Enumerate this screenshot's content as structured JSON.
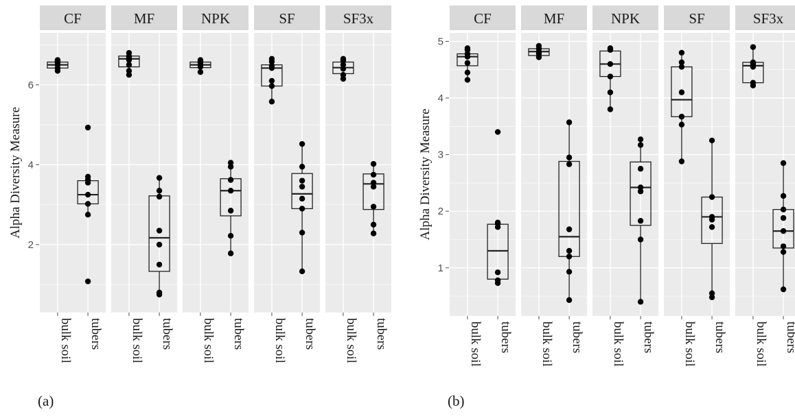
{
  "chart_data": [
    {
      "type": "boxplot",
      "label": "(a)",
      "ylabel": "Alpha Diversity Measure",
      "ylim": [
        0.3,
        7.3
      ],
      "yticks": [
        2,
        4,
        6
      ],
      "categories": [
        "bulk soil",
        "tubers"
      ],
      "facets": [
        {
          "name": "CF",
          "groups": [
            {
              "category": "bulk soil",
              "q1": 6.42,
              "median": 6.5,
              "q3": 6.57,
              "whisker_low": 6.35,
              "whisker_high": 6.62,
              "points": [
                6.35,
                6.42,
                6.5,
                6.55,
                6.6,
                6.62
              ]
            },
            {
              "category": "tubers",
              "q1": 3.02,
              "median": 3.25,
              "q3": 3.6,
              "whisker_low": 2.75,
              "whisker_high": 3.7,
              "outliers_high": [
                4.93
              ],
              "outliers_low": [
                1.08
              ],
              "points": [
                1.08,
                2.75,
                3.02,
                3.25,
                3.55,
                3.62,
                3.7,
                4.93
              ]
            }
          ]
        },
        {
          "name": "MF",
          "groups": [
            {
              "category": "bulk soil",
              "q1": 6.45,
              "median": 6.65,
              "q3": 6.72,
              "whisker_low": 6.25,
              "whisker_high": 6.8,
              "points": [
                6.25,
                6.35,
                6.5,
                6.62,
                6.68,
                6.72,
                6.8
              ]
            },
            {
              "category": "tubers",
              "q1": 1.33,
              "median": 2.17,
              "q3": 3.22,
              "whisker_low": 0.75,
              "whisker_high": 3.67,
              "points": [
                0.75,
                0.8,
                1.5,
                2.0,
                2.35,
                3.2,
                3.35,
                3.67
              ]
            }
          ]
        },
        {
          "name": "NPK",
          "groups": [
            {
              "category": "bulk soil",
              "q1": 6.43,
              "median": 6.5,
              "q3": 6.57,
              "whisker_low": 6.32,
              "whisker_high": 6.62,
              "points": [
                6.32,
                6.45,
                6.5,
                6.55,
                6.6,
                6.62
              ]
            },
            {
              "category": "tubers",
              "q1": 2.72,
              "median": 3.35,
              "q3": 3.65,
              "whisker_low": 1.78,
              "whisker_high": 4.05,
              "points": [
                1.78,
                2.22,
                2.85,
                3.35,
                3.62,
                3.95,
                4.05
              ]
            }
          ]
        },
        {
          "name": "SF",
          "groups": [
            {
              "category": "bulk soil",
              "q1": 5.97,
              "median": 6.42,
              "q3": 6.5,
              "whisker_low": 5.58,
              "whisker_high": 6.65,
              "points": [
                5.58,
                5.97,
                6.1,
                6.42,
                6.48,
                6.58,
                6.65
              ]
            },
            {
              "category": "tubers",
              "q1": 2.9,
              "median": 3.27,
              "q3": 3.78,
              "whisker_low": 1.33,
              "whisker_high": 4.52,
              "points": [
                1.33,
                2.3,
                2.9,
                3.15,
                3.45,
                3.6,
                3.95,
                4.52
              ]
            }
          ]
        },
        {
          "name": "SF3x",
          "groups": [
            {
              "category": "bulk soil",
              "q1": 6.28,
              "median": 6.43,
              "q3": 6.57,
              "whisker_low": 6.15,
              "whisker_high": 6.65,
              "points": [
                6.15,
                6.25,
                6.4,
                6.5,
                6.6,
                6.65
              ]
            },
            {
              "category": "tubers",
              "q1": 2.88,
              "median": 3.52,
              "q3": 3.77,
              "whisker_low": 2.28,
              "whisker_high": 4.02,
              "points": [
                2.28,
                2.5,
                2.95,
                3.45,
                3.55,
                3.75,
                4.02
              ]
            }
          ]
        }
      ]
    },
    {
      "type": "boxplot",
      "label": "(b)",
      "ylabel": "Alpha Diversity Measure",
      "ylim": [
        0.15,
        5.15
      ],
      "yticks": [
        1,
        2,
        3,
        4,
        5
      ],
      "categories": [
        "bulk soil",
        "tubers"
      ],
      "facets": [
        {
          "name": "CF",
          "groups": [
            {
              "category": "bulk soil",
              "q1": 4.57,
              "median": 4.73,
              "q3": 4.78,
              "whisker_low": 4.32,
              "whisker_high": 4.88,
              "points": [
                4.32,
                4.45,
                4.62,
                4.73,
                4.78,
                4.85,
                4.88
              ]
            },
            {
              "category": "tubers",
              "q1": 0.8,
              "median": 1.3,
              "q3": 1.77,
              "whisker_low": 0.73,
              "whisker_high": 1.8,
              "outliers_high": [
                3.4
              ],
              "points": [
                0.73,
                0.78,
                0.92,
                1.72,
                1.78,
                1.8,
                3.4
              ]
            }
          ]
        },
        {
          "name": "MF",
          "groups": [
            {
              "category": "bulk soil",
              "q1": 4.75,
              "median": 4.82,
              "q3": 4.87,
              "whisker_low": 4.72,
              "whisker_high": 4.92,
              "points": [
                4.72,
                4.78,
                4.82,
                4.87,
                4.92
              ]
            },
            {
              "category": "tubers",
              "q1": 1.2,
              "median": 1.55,
              "q3": 2.88,
              "whisker_low": 0.43,
              "whisker_high": 3.57,
              "points": [
                0.43,
                0.93,
                1.2,
                1.3,
                1.68,
                2.83,
                2.95,
                3.57
              ]
            }
          ]
        },
        {
          "name": "NPK",
          "groups": [
            {
              "category": "bulk soil",
              "q1": 4.38,
              "median": 4.6,
              "q3": 4.83,
              "whisker_low": 3.8,
              "whisker_high": 4.88,
              "points": [
                3.8,
                4.1,
                4.38,
                4.6,
                4.85,
                4.88
              ]
            },
            {
              "category": "tubers",
              "q1": 1.75,
              "median": 2.42,
              "q3": 2.87,
              "whisker_low": 0.4,
              "whisker_high": 3.27,
              "points": [
                0.4,
                1.5,
                1.83,
                2.35,
                2.42,
                2.75,
                3.17,
                3.27
              ]
            }
          ]
        },
        {
          "name": "SF",
          "groups": [
            {
              "category": "bulk soil",
              "q1": 3.67,
              "median": 3.97,
              "q3": 4.55,
              "whisker_low": 2.88,
              "whisker_high": 4.8,
              "points": [
                2.88,
                3.53,
                3.67,
                4.1,
                4.55,
                4.63,
                4.8
              ]
            },
            {
              "category": "tubers",
              "q1": 1.43,
              "median": 1.9,
              "q3": 2.25,
              "whisker_low": 0.48,
              "whisker_high": 3.25,
              "points": [
                0.48,
                0.55,
                1.72,
                1.85,
                1.9,
                2.25,
                3.25
              ]
            }
          ]
        },
        {
          "name": "SF3x",
          "groups": [
            {
              "category": "bulk soil",
              "q1": 4.27,
              "median": 4.57,
              "q3": 4.63,
              "whisker_low": 4.22,
              "whisker_high": 4.9,
              "points": [
                4.22,
                4.27,
                4.55,
                4.6,
                4.63,
                4.9
              ]
            },
            {
              "category": "tubers",
              "q1": 1.35,
              "median": 1.65,
              "q3": 2.03,
              "whisker_low": 0.62,
              "whisker_high": 2.85,
              "points": [
                0.62,
                1.28,
                1.38,
                1.65,
                1.88,
                2.03,
                2.27,
                2.85
              ]
            }
          ]
        }
      ]
    }
  ]
}
